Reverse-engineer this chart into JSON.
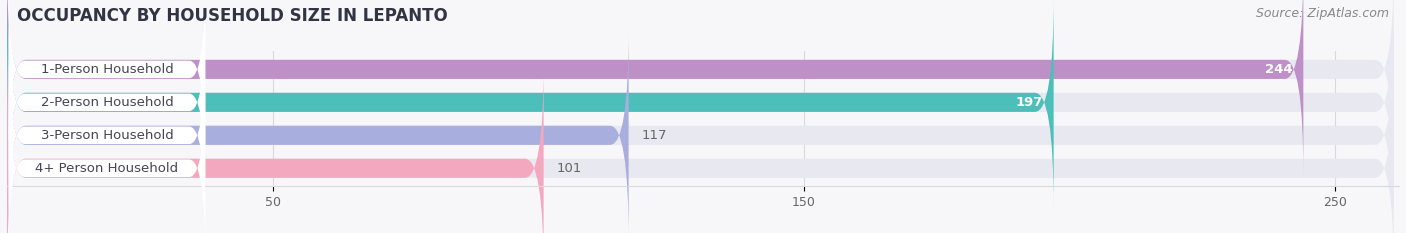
{
  "title": "OCCUPANCY BY HOUSEHOLD SIZE IN LEPANTO",
  "source": "Source: ZipAtlas.com",
  "categories": [
    "1-Person Household",
    "2-Person Household",
    "3-Person Household",
    "4+ Person Household"
  ],
  "values": [
    244,
    197,
    117,
    101
  ],
  "bar_colors": [
    "#bf8fc8",
    "#4dbfba",
    "#a8aedd",
    "#f4a8c0"
  ],
  "bg_bar_color": "#e8e8f0",
  "label_pill_color": "#ffffff",
  "xlim_max": 262,
  "xticks": [
    50,
    150,
    250
  ],
  "value_label_colors": [
    "#ffffff",
    "#ffffff",
    "#666666",
    "#666666"
  ],
  "title_fontsize": 12,
  "source_fontsize": 9,
  "label_fontsize": 9.5,
  "tick_fontsize": 9,
  "bar_height": 0.58,
  "background_color": "#f7f7fa",
  "grid_color": "#d8d8e0",
  "title_color": "#333344",
  "source_color": "#888888"
}
